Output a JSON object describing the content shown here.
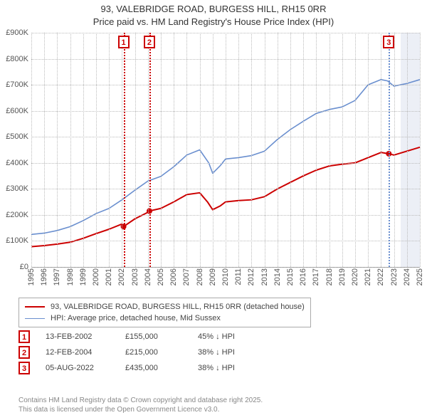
{
  "title": {
    "line1": "93, VALEBRIDGE ROAD, BURGESS HILL, RH15 0RR",
    "line2": "Price paid vs. HM Land Registry's House Price Index (HPI)",
    "fontsize": 13,
    "color": "#333333"
  },
  "chart": {
    "type": "line",
    "background_color": "#ffffff",
    "grid_color": "#bbbbbb",
    "grid_dotted": true,
    "x_axis": {
      "min": 1995,
      "max": 2025,
      "ticks": [
        1995,
        1996,
        1997,
        1998,
        1999,
        2000,
        2001,
        2002,
        2003,
        2004,
        2005,
        2006,
        2007,
        2008,
        2009,
        2010,
        2011,
        2012,
        2013,
        2014,
        2015,
        2016,
        2017,
        2018,
        2019,
        2020,
        2021,
        2022,
        2023,
        2024,
        2025
      ],
      "label_fontsize": 11,
      "label_rotation": -90,
      "label_color": "#555555"
    },
    "y_axis": {
      "min": 0,
      "max": 900000,
      "ticks": [
        0,
        100000,
        200000,
        300000,
        400000,
        500000,
        600000,
        700000,
        800000,
        900000
      ],
      "tick_labels": [
        "£0",
        "£100K",
        "£200K",
        "£300K",
        "£400K",
        "£500K",
        "£600K",
        "£700K",
        "£800K",
        "£900K"
      ],
      "label_fontsize": 11,
      "label_color": "#555555"
    },
    "shaded_bands": [
      {
        "x_start": 2023.5,
        "x_end": 2025,
        "fill": "rgba(200,210,230,0.35)"
      }
    ],
    "series": [
      {
        "name": "price_paid",
        "label": "93, VALEBRIDGE ROAD, BURGESS HILL, RH15 0RR (detached house)",
        "color": "#cc0000",
        "line_width": 2,
        "points_year_value": [
          [
            1995,
            78000
          ],
          [
            1996,
            82000
          ],
          [
            1997,
            88000
          ],
          [
            1998,
            95000
          ],
          [
            1999,
            110000
          ],
          [
            2000,
            128000
          ],
          [
            2001,
            145000
          ],
          [
            2002,
            165000
          ],
          [
            2002.12,
            155000
          ],
          [
            2003,
            185000
          ],
          [
            2004,
            210000
          ],
          [
            2004.12,
            215000
          ],
          [
            2005,
            225000
          ],
          [
            2006,
            250000
          ],
          [
            2007,
            278000
          ],
          [
            2008,
            285000
          ],
          [
            2008.6,
            250000
          ],
          [
            2009,
            220000
          ],
          [
            2009.6,
            235000
          ],
          [
            2010,
            250000
          ],
          [
            2011,
            255000
          ],
          [
            2012,
            258000
          ],
          [
            2013,
            270000
          ],
          [
            2014,
            300000
          ],
          [
            2015,
            325000
          ],
          [
            2016,
            350000
          ],
          [
            2017,
            372000
          ],
          [
            2018,
            388000
          ],
          [
            2019,
            395000
          ],
          [
            2020,
            400000
          ],
          [
            2021,
            420000
          ],
          [
            2022,
            440000
          ],
          [
            2022.6,
            435000
          ],
          [
            2023,
            430000
          ],
          [
            2024,
            445000
          ],
          [
            2025,
            460000
          ]
        ],
        "markers": [
          {
            "year": 2002.12,
            "value": 155000
          },
          {
            "year": 2004.12,
            "value": 215000
          },
          {
            "year": 2022.6,
            "value": 435000
          }
        ]
      },
      {
        "name": "hpi",
        "label": "HPI: Average price, detached house, Mid Sussex",
        "color": "#6a8fcf",
        "line_width": 1.6,
        "points_year_value": [
          [
            1995,
            125000
          ],
          [
            1996,
            130000
          ],
          [
            1997,
            140000
          ],
          [
            1998,
            155000
          ],
          [
            1999,
            178000
          ],
          [
            2000,
            205000
          ],
          [
            2001,
            225000
          ],
          [
            2002,
            258000
          ],
          [
            2003,
            295000
          ],
          [
            2004,
            330000
          ],
          [
            2005,
            348000
          ],
          [
            2006,
            385000
          ],
          [
            2007,
            430000
          ],
          [
            2008,
            450000
          ],
          [
            2008.7,
            400000
          ],
          [
            2009,
            360000
          ],
          [
            2009.6,
            390000
          ],
          [
            2010,
            415000
          ],
          [
            2011,
            420000
          ],
          [
            2012,
            428000
          ],
          [
            2013,
            445000
          ],
          [
            2014,
            490000
          ],
          [
            2015,
            528000
          ],
          [
            2016,
            560000
          ],
          [
            2017,
            590000
          ],
          [
            2018,
            605000
          ],
          [
            2019,
            615000
          ],
          [
            2020,
            640000
          ],
          [
            2021,
            700000
          ],
          [
            2022,
            720000
          ],
          [
            2022.5,
            715000
          ],
          [
            2023,
            695000
          ],
          [
            2024,
            705000
          ],
          [
            2025,
            720000
          ]
        ]
      }
    ],
    "annotations": [
      {
        "id": "1",
        "year": 2002.12,
        "line_color": "#cc0000",
        "box_border": "#cc0000",
        "box_text_color": "#cc0000"
      },
      {
        "id": "2",
        "year": 2004.12,
        "line_color": "#cc0000",
        "box_border": "#cc0000",
        "box_text_color": "#cc0000"
      },
      {
        "id": "3",
        "year": 2022.6,
        "line_color": "#6a8fcf",
        "box_border": "#cc0000",
        "box_text_color": "#cc0000"
      }
    ]
  },
  "legend": {
    "border_color": "#aaaaaa",
    "fontsize": 11
  },
  "events": [
    {
      "id": "1",
      "date": "13-FEB-2002",
      "price": "£155,000",
      "delta": "45% ↓ HPI",
      "box_border": "#cc0000"
    },
    {
      "id": "2",
      "date": "12-FEB-2004",
      "price": "£215,000",
      "delta": "38% ↓ HPI",
      "box_border": "#cc0000"
    },
    {
      "id": "3",
      "date": "05-AUG-2022",
      "price": "£435,000",
      "delta": "38% ↓ HPI",
      "box_border": "#cc0000"
    }
  ],
  "footnote": {
    "line1": "Contains HM Land Registry data © Crown copyright and database right 2025.",
    "line2": "This data is licensed under the Open Government Licence v3.0.",
    "color": "#888888",
    "fontsize": 10
  }
}
